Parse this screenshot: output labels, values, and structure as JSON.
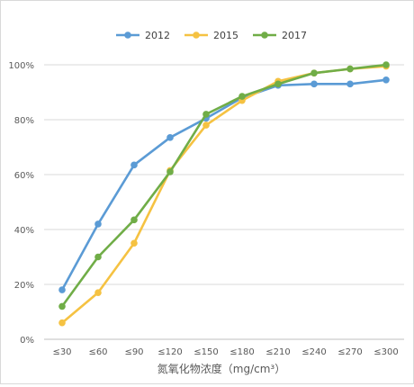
{
  "chart_data": {
    "type": "line",
    "title": "",
    "xlabel": "氮氧化物浓度（mg/cm³）",
    "ylabel": "",
    "categories": [
      "≤30",
      "≤60",
      "≤90",
      "≤120",
      "≤150",
      "≤180",
      "≤210",
      "≤240",
      "≤270",
      "≤300"
    ],
    "ylim": [
      0,
      100
    ],
    "yticks": [
      "0%",
      "20%",
      "40%",
      "60%",
      "80%",
      "100%"
    ],
    "grid": true,
    "legend_position": "top",
    "series": [
      {
        "name": "2012",
        "color": "#5b9bd5",
        "values": [
          18,
          42,
          63.5,
          73.5,
          80.5,
          88,
          92.5,
          93,
          93,
          94.5
        ]
      },
      {
        "name": "2015",
        "color": "#f5c242",
        "values": [
          6,
          17,
          35,
          61.5,
          78,
          87,
          94,
          97,
          98.5,
          99.5
        ]
      },
      {
        "name": "2017",
        "color": "#70ad47",
        "values": [
          12,
          30,
          43.5,
          61,
          82,
          88.5,
          93,
          97,
          98.5,
          100
        ]
      }
    ]
  }
}
